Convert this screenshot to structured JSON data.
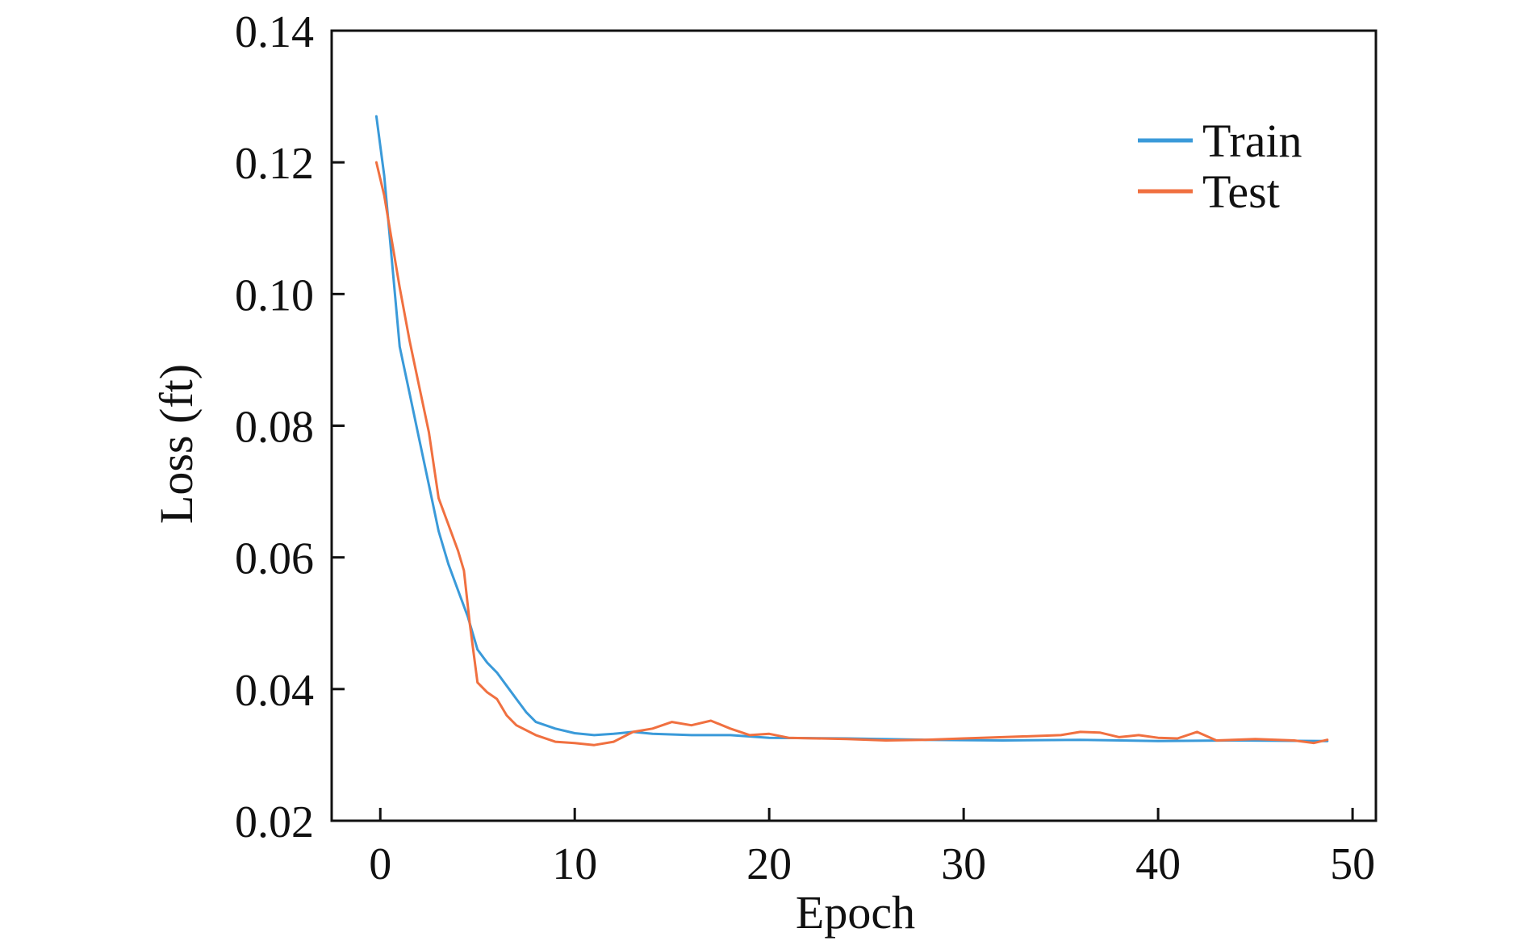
{
  "chart_data": {
    "type": "line",
    "title": "",
    "xlabel": "Epoch",
    "ylabel": "Loss (ft)",
    "xlim": [
      -2.5,
      51.2
    ],
    "ylim": [
      0.02,
      0.14
    ],
    "x_ticks": [
      0,
      10,
      20,
      30,
      40,
      50
    ],
    "y_ticks": [
      0.02,
      0.04,
      0.06,
      0.08,
      0.1,
      0.12,
      0.14
    ],
    "x_tick_labels": [
      "0",
      "10",
      "20",
      "30",
      "40",
      "50"
    ],
    "y_tick_labels": [
      "0.02",
      "0.04",
      "0.06",
      "0.08",
      "0.10",
      "0.12",
      "0.14"
    ],
    "grid": false,
    "legend_position": "top-right",
    "series": [
      {
        "name": "Train",
        "color": "#3a9ad9",
        "points": [
          [
            -0.2,
            0.127
          ],
          [
            0.2,
            0.118
          ],
          [
            0.6,
            0.105
          ],
          [
            1.0,
            0.092
          ],
          [
            1.5,
            0.085
          ],
          [
            2.0,
            0.078
          ],
          [
            2.5,
            0.071
          ],
          [
            3.0,
            0.064
          ],
          [
            3.5,
            0.059
          ],
          [
            4.0,
            0.055
          ],
          [
            4.5,
            0.051
          ],
          [
            5.0,
            0.046
          ],
          [
            5.5,
            0.044
          ],
          [
            6.0,
            0.0425
          ],
          [
            6.5,
            0.0405
          ],
          [
            7.0,
            0.0385
          ],
          [
            7.5,
            0.0365
          ],
          [
            8.0,
            0.035
          ],
          [
            9.0,
            0.034
          ],
          [
            10.0,
            0.0333
          ],
          [
            11.0,
            0.033
          ],
          [
            12.0,
            0.0332
          ],
          [
            13.0,
            0.0335
          ],
          [
            14.0,
            0.0332
          ],
          [
            16.0,
            0.033
          ],
          [
            18.0,
            0.033
          ],
          [
            20.0,
            0.0326
          ],
          [
            24.0,
            0.0325
          ],
          [
            28.0,
            0.0323
          ],
          [
            32.0,
            0.0322
          ],
          [
            36.0,
            0.0323
          ],
          [
            40.0,
            0.0321
          ],
          [
            44.0,
            0.0322
          ],
          [
            48.7,
            0.0321
          ]
        ]
      },
      {
        "name": "Test",
        "color": "#f07040",
        "points": [
          [
            -0.2,
            0.12
          ],
          [
            0.2,
            0.115
          ],
          [
            0.6,
            0.108
          ],
          [
            1.0,
            0.101
          ],
          [
            1.5,
            0.093
          ],
          [
            2.0,
            0.086
          ],
          [
            2.5,
            0.079
          ],
          [
            3.0,
            0.069
          ],
          [
            3.5,
            0.065
          ],
          [
            4.0,
            0.061
          ],
          [
            4.3,
            0.058
          ],
          [
            4.6,
            0.05
          ],
          [
            5.0,
            0.041
          ],
          [
            5.5,
            0.0395
          ],
          [
            6.0,
            0.0385
          ],
          [
            6.5,
            0.036
          ],
          [
            7.0,
            0.0345
          ],
          [
            8.0,
            0.033
          ],
          [
            9.0,
            0.032
          ],
          [
            10.0,
            0.0318
          ],
          [
            11.0,
            0.0315
          ],
          [
            12.0,
            0.032
          ],
          [
            13.0,
            0.0335
          ],
          [
            14.0,
            0.034
          ],
          [
            15.0,
            0.035
          ],
          [
            16.0,
            0.0345
          ],
          [
            17.0,
            0.0352
          ],
          [
            18.0,
            0.034
          ],
          [
            19.0,
            0.033
          ],
          [
            20.0,
            0.0332
          ],
          [
            21.0,
            0.0326
          ],
          [
            24.0,
            0.0324
          ],
          [
            26.0,
            0.0322
          ],
          [
            28.0,
            0.0323
          ],
          [
            30.0,
            0.0325
          ],
          [
            32.0,
            0.0327
          ],
          [
            35.0,
            0.033
          ],
          [
            36.0,
            0.0335
          ],
          [
            37.0,
            0.0334
          ],
          [
            38.0,
            0.0327
          ],
          [
            39.0,
            0.033
          ],
          [
            40.0,
            0.0326
          ],
          [
            41.0,
            0.0325
          ],
          [
            42.0,
            0.0335
          ],
          [
            43.0,
            0.0322
          ],
          [
            45.0,
            0.0324
          ],
          [
            47.0,
            0.0322
          ],
          [
            48.0,
            0.0318
          ],
          [
            48.7,
            0.0323
          ]
        ]
      }
    ]
  }
}
